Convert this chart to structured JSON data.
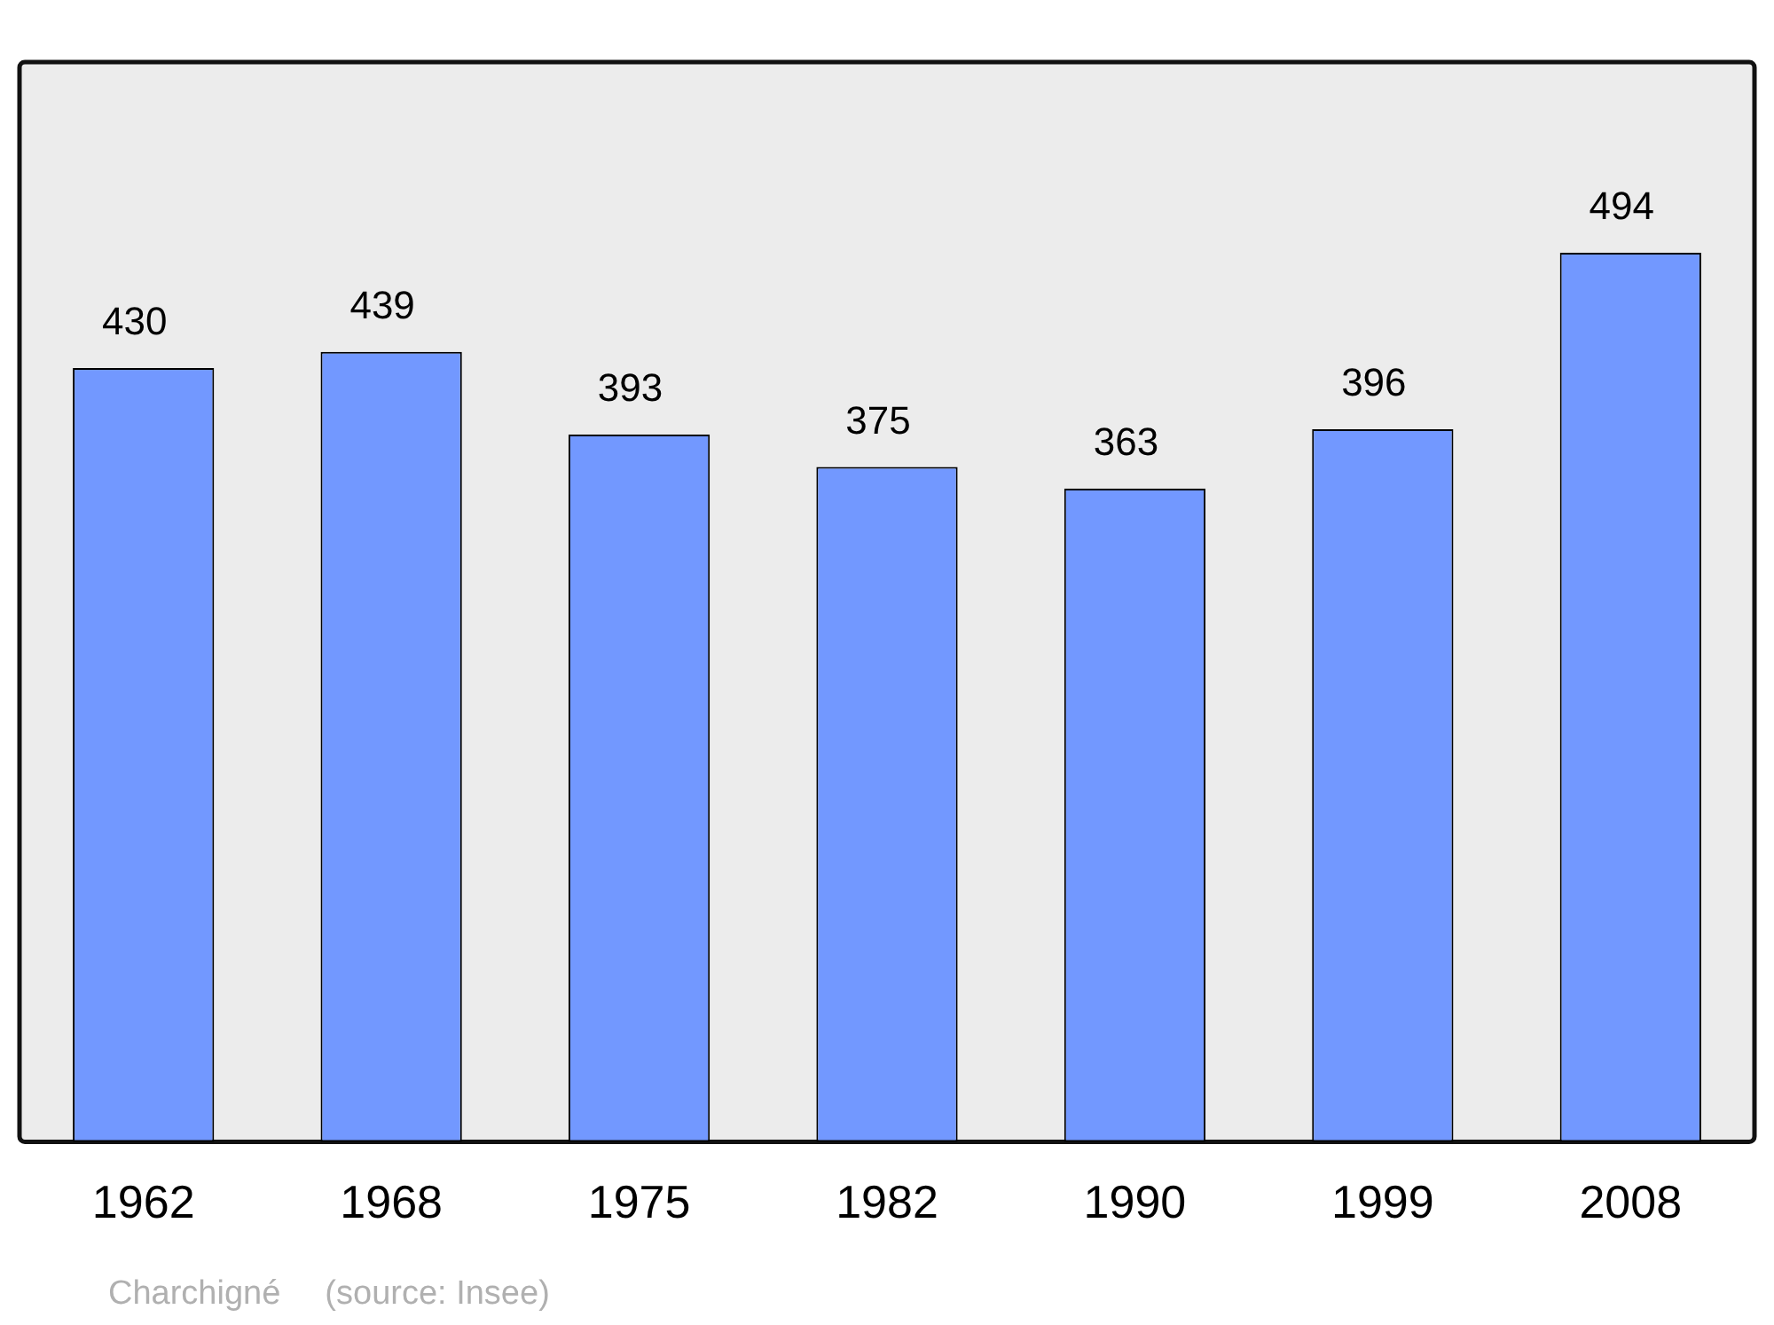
{
  "chart_data": {
    "type": "bar",
    "categories": [
      "1962",
      "1968",
      "1975",
      "1982",
      "1990",
      "1999",
      "2008"
    ],
    "values": [
      430,
      439,
      393,
      375,
      363,
      396,
      494
    ],
    "color": "#7298ff",
    "data_labels": true,
    "legend": false,
    "annotations": [
      "Charchigné",
      "(source: Insee)"
    ]
  }
}
